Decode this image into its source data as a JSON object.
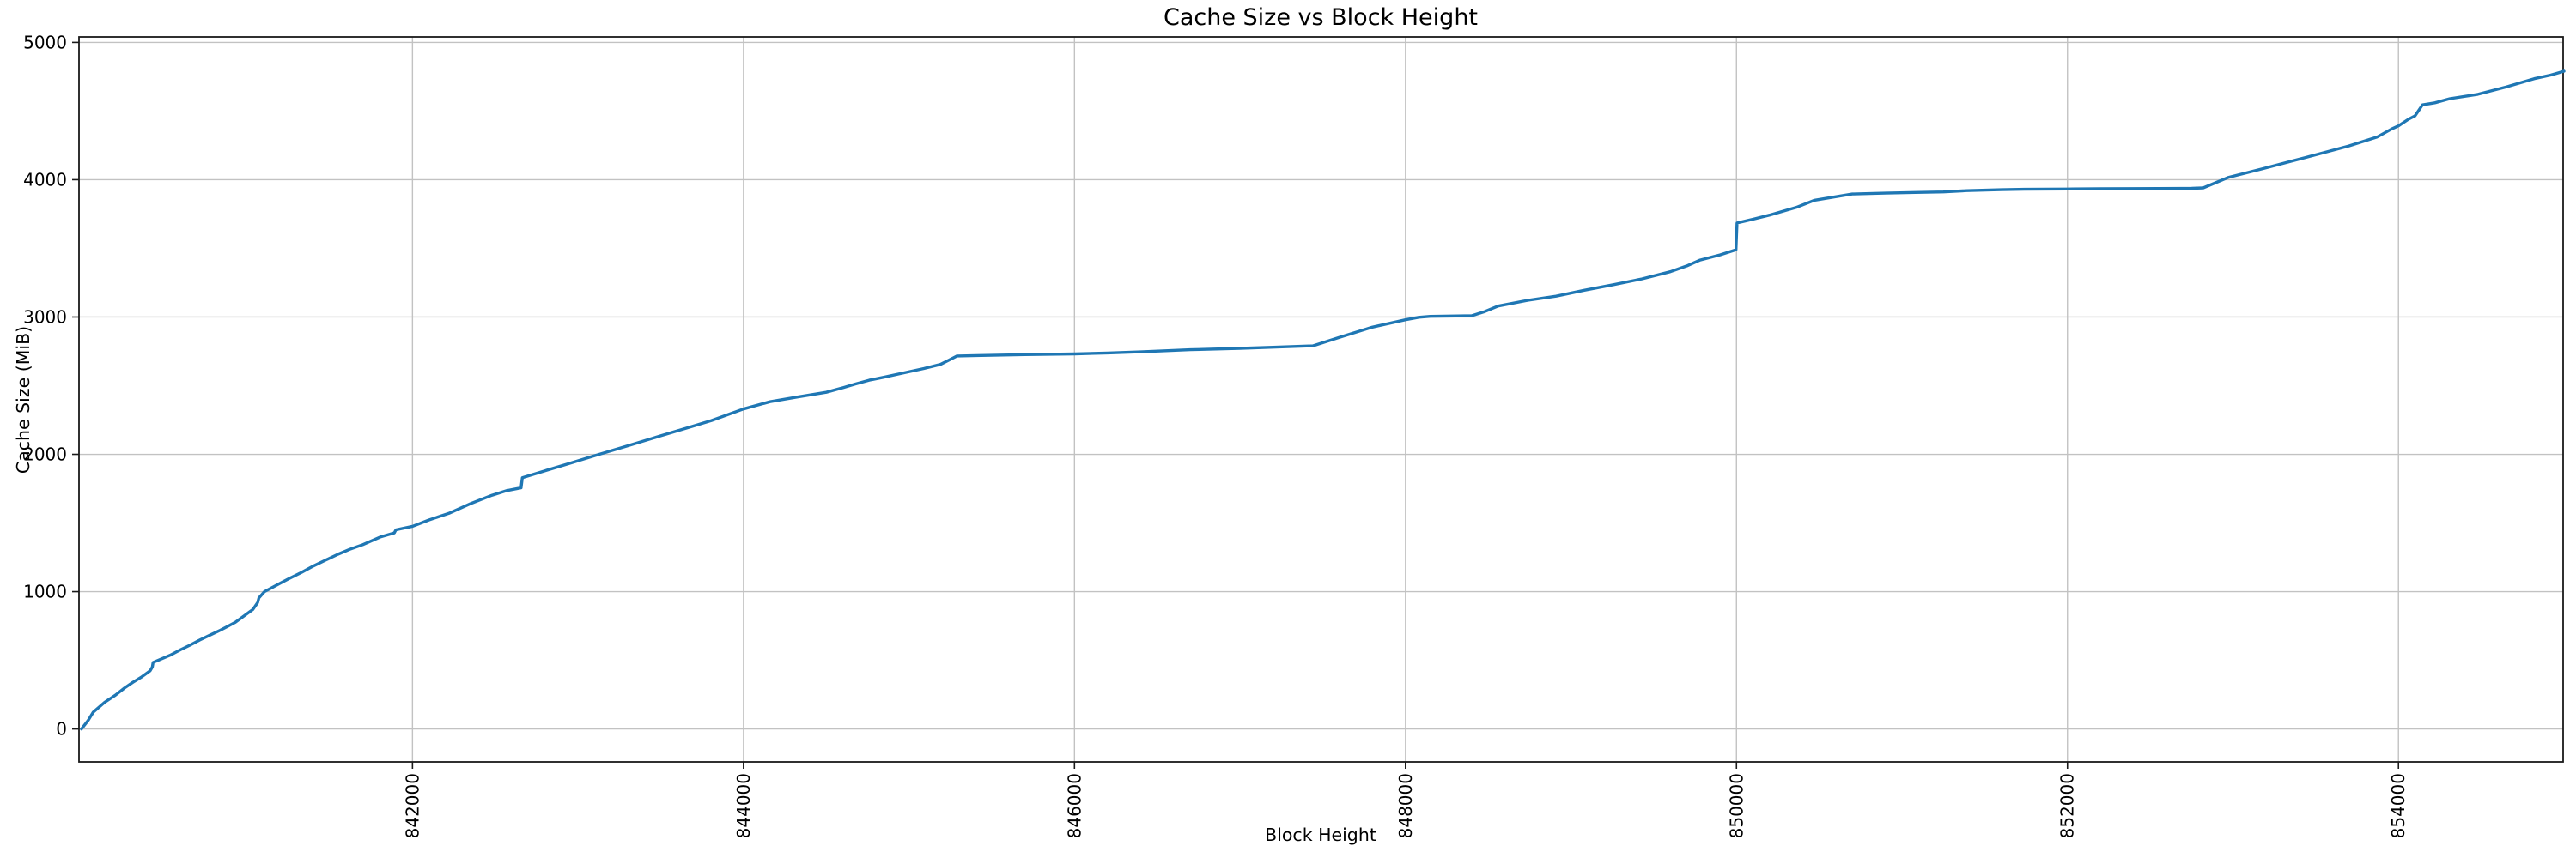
{
  "chart_data": {
    "type": "line",
    "title": "Cache Size vs Block Height",
    "xlabel": "Block Height",
    "ylabel": "Cache Size (MiB)",
    "grid": true,
    "legend_position": "none",
    "line_color": "#1f77b4",
    "grid_color": "#c2c2c2",
    "spine_color": "#1a1a1a",
    "background_color": "#ffffff",
    "xlim": [
      839985,
      854995
    ],
    "ylim": [
      -240,
      5040
    ],
    "x_tick_values": [
      842000,
      844000,
      846000,
      848000,
      850000,
      852000,
      854000
    ],
    "x_tick_labels": [
      "842000",
      "844000",
      "846000",
      "848000",
      "850000",
      "852000",
      "854000"
    ],
    "y_tick_values": [
      0,
      1000,
      2000,
      3000,
      4000,
      5000
    ],
    "y_tick_labels": [
      "0",
      "1000",
      "2000",
      "3000",
      "4000",
      "5000"
    ],
    "x_tick_rotation": 90,
    "series": [
      {
        "name": "cache-size",
        "points": [
          [
            840000,
            0
          ],
          [
            840040,
            62
          ],
          [
            840070,
            121
          ],
          [
            840140,
            194
          ],
          [
            840205,
            246
          ],
          [
            840260,
            298
          ],
          [
            840310,
            339
          ],
          [
            840365,
            380
          ],
          [
            840415,
            424
          ],
          [
            840428,
            452
          ],
          [
            840433,
            484
          ],
          [
            840535,
            537
          ],
          [
            840600,
            578
          ],
          [
            840655,
            610
          ],
          [
            840715,
            648
          ],
          [
            840775,
            683
          ],
          [
            840840,
            720
          ],
          [
            840880,
            745
          ],
          [
            840930,
            777
          ],
          [
            840990,
            830
          ],
          [
            841036,
            871
          ],
          [
            841064,
            920
          ],
          [
            841072,
            954
          ],
          [
            841105,
            1000
          ],
          [
            841180,
            1048
          ],
          [
            841250,
            1092
          ],
          [
            841330,
            1140
          ],
          [
            841400,
            1186
          ],
          [
            841480,
            1232
          ],
          [
            841550,
            1272
          ],
          [
            841620,
            1308
          ],
          [
            841700,
            1342
          ],
          [
            841805,
            1398
          ],
          [
            841890,
            1428
          ],
          [
            841900,
            1450
          ],
          [
            842000,
            1476
          ],
          [
            842100,
            1522
          ],
          [
            842220,
            1570
          ],
          [
            842350,
            1640
          ],
          [
            842480,
            1702
          ],
          [
            842570,
            1736
          ],
          [
            842656,
            1756
          ],
          [
            842664,
            1830
          ],
          [
            842800,
            1880
          ],
          [
            842946,
            1933
          ],
          [
            843100,
            1990
          ],
          [
            843300,
            2062
          ],
          [
            843500,
            2135
          ],
          [
            843670,
            2196
          ],
          [
            843807,
            2246
          ],
          [
            844000,
            2330
          ],
          [
            844160,
            2383
          ],
          [
            844330,
            2418
          ],
          [
            844500,
            2452
          ],
          [
            844605,
            2487
          ],
          [
            844675,
            2512
          ],
          [
            844760,
            2540
          ],
          [
            844850,
            2562
          ],
          [
            844950,
            2588
          ],
          [
            845090,
            2625
          ],
          [
            845190,
            2655
          ],
          [
            845240,
            2685
          ],
          [
            845290,
            2716
          ],
          [
            845435,
            2720
          ],
          [
            845700,
            2726
          ],
          [
            846000,
            2731
          ],
          [
            846200,
            2738
          ],
          [
            846400,
            2746
          ],
          [
            846700,
            2762
          ],
          [
            847000,
            2772
          ],
          [
            847200,
            2780
          ],
          [
            847440,
            2790
          ],
          [
            847600,
            2852
          ],
          [
            847800,
            2926
          ],
          [
            848000,
            2980
          ],
          [
            848080,
            2998
          ],
          [
            848150,
            3005
          ],
          [
            848400,
            3009
          ],
          [
            848480,
            3040
          ],
          [
            848560,
            3080
          ],
          [
            848740,
            3122
          ],
          [
            848910,
            3152
          ],
          [
            849080,
            3195
          ],
          [
            849260,
            3236
          ],
          [
            849430,
            3278
          ],
          [
            849600,
            3330
          ],
          [
            849700,
            3372
          ],
          [
            849780,
            3415
          ],
          [
            849900,
            3452
          ],
          [
            849997,
            3490
          ],
          [
            850003,
            3685
          ],
          [
            850100,
            3712
          ],
          [
            850200,
            3742
          ],
          [
            850360,
            3798
          ],
          [
            850470,
            3850
          ],
          [
            850700,
            3896
          ],
          [
            850900,
            3902
          ],
          [
            851080,
            3907
          ],
          [
            851250,
            3911
          ],
          [
            851390,
            3920
          ],
          [
            851600,
            3927
          ],
          [
            851740,
            3930
          ],
          [
            852000,
            3932
          ],
          [
            852200,
            3934
          ],
          [
            852400,
            3935
          ],
          [
            852750,
            3937
          ],
          [
            852820,
            3940
          ],
          [
            852970,
            4016
          ],
          [
            853180,
            4080
          ],
          [
            853440,
            4162
          ],
          [
            853700,
            4246
          ],
          [
            853870,
            4310
          ],
          [
            853960,
            4370
          ],
          [
            854000,
            4392
          ],
          [
            854060,
            4440
          ],
          [
            854100,
            4465
          ],
          [
            854145,
            4545
          ],
          [
            854220,
            4560
          ],
          [
            854310,
            4590
          ],
          [
            854480,
            4622
          ],
          [
            854650,
            4675
          ],
          [
            854820,
            4736
          ],
          [
            854920,
            4762
          ],
          [
            855000,
            4790
          ]
        ]
      }
    ]
  }
}
